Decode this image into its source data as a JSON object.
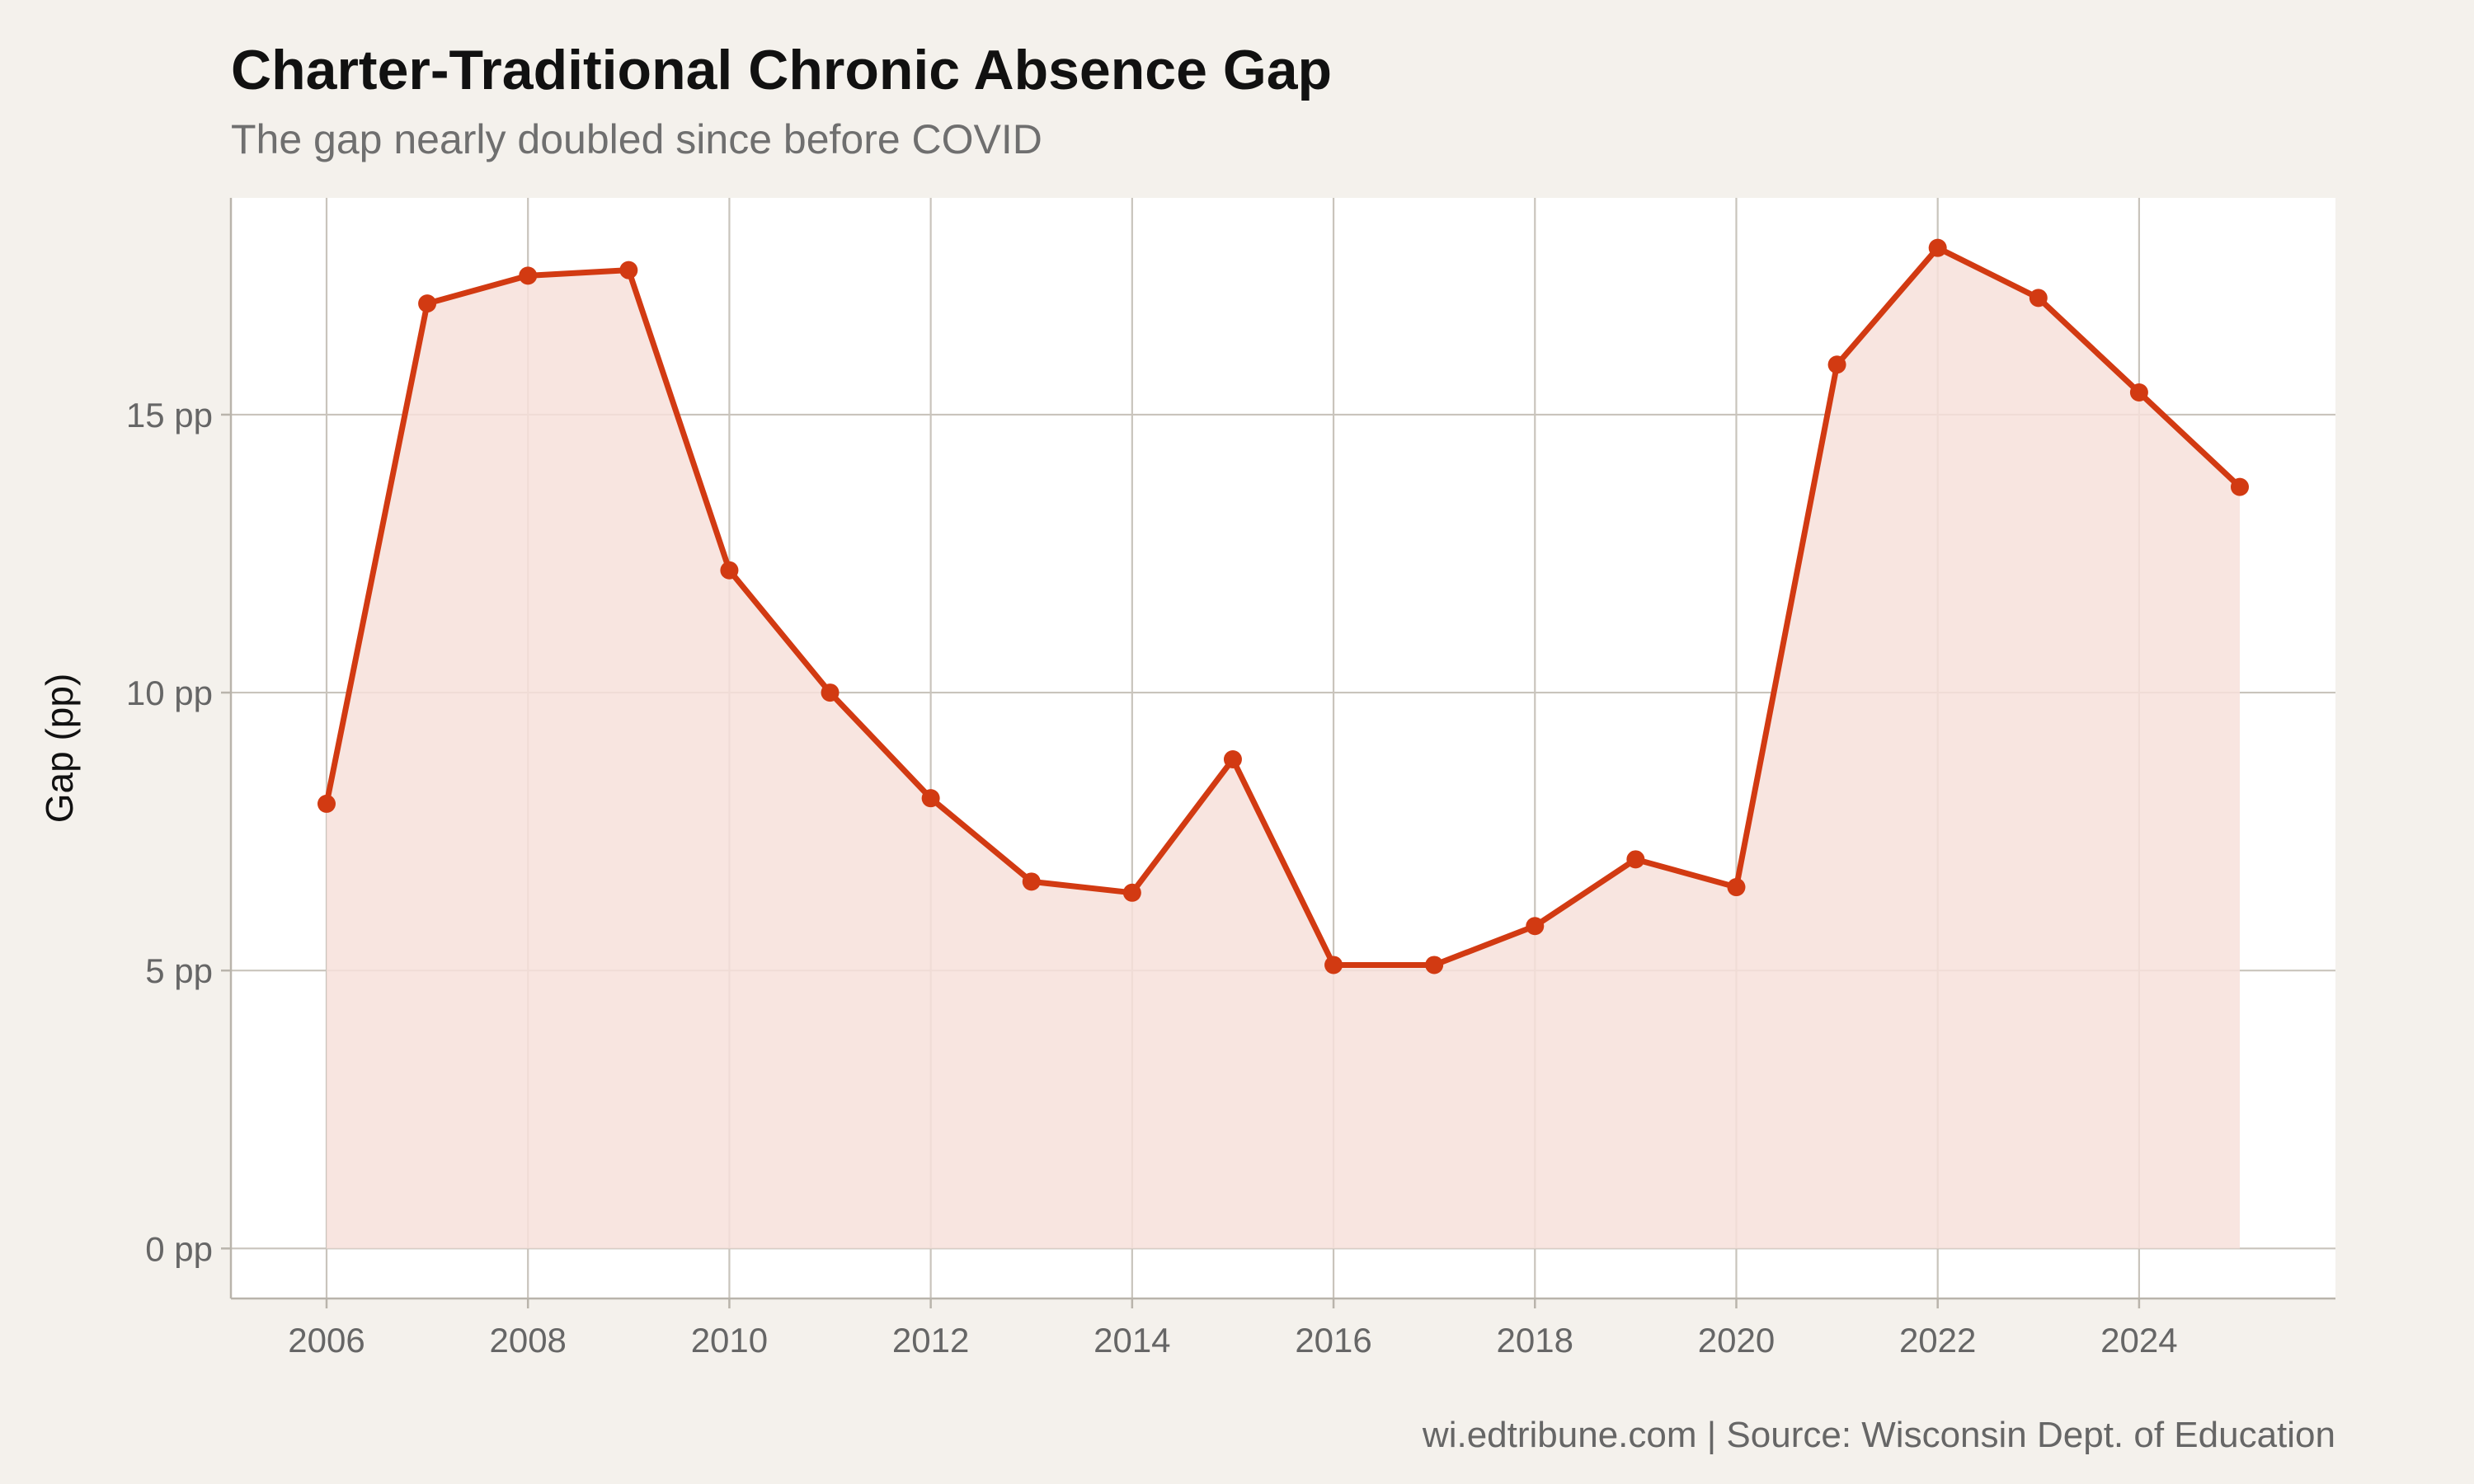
{
  "chart_data": {
    "type": "line",
    "title": "Charter-Traditional Chronic Absence Gap",
    "subtitle": "The gap nearly doubled since before COVID",
    "xlabel": "",
    "ylabel": "Gap (pp)",
    "caption": "wi.edtribune.com | Source: Wisconsin Dept. of Education",
    "x": [
      2006,
      2007,
      2008,
      2009,
      2010,
      2011,
      2012,
      2013,
      2014,
      2015,
      2016,
      2017,
      2018,
      2019,
      2020,
      2021,
      2022,
      2023,
      2024,
      2025
    ],
    "series": [
      {
        "values": [
          8.0,
          17.0,
          17.5,
          17.6,
          12.2,
          10.0,
          8.1,
          6.6,
          6.4,
          8.8,
          5.1,
          5.1,
          5.8,
          7.0,
          6.5,
          15.9,
          18.0,
          17.1,
          15.4,
          13.7
        ]
      }
    ],
    "x_ticks": [
      "2006",
      "2008",
      "2010",
      "2012",
      "2014",
      "2016",
      "2018",
      "2020",
      "2022",
      "2024"
    ],
    "y_ticks": [
      "0 pp",
      "5 pp",
      "10 pp",
      "15 pp"
    ],
    "xlim": [
      2005.05,
      2025.95
    ],
    "ylim": [
      -0.9,
      18.9
    ],
    "grid": true,
    "area_fill": true,
    "colors": {
      "line": "#d23a12",
      "area": "#f7e0da",
      "grid": "#c9c4bc",
      "panel": "#ffffff",
      "background": "#f4f1ec"
    }
  }
}
